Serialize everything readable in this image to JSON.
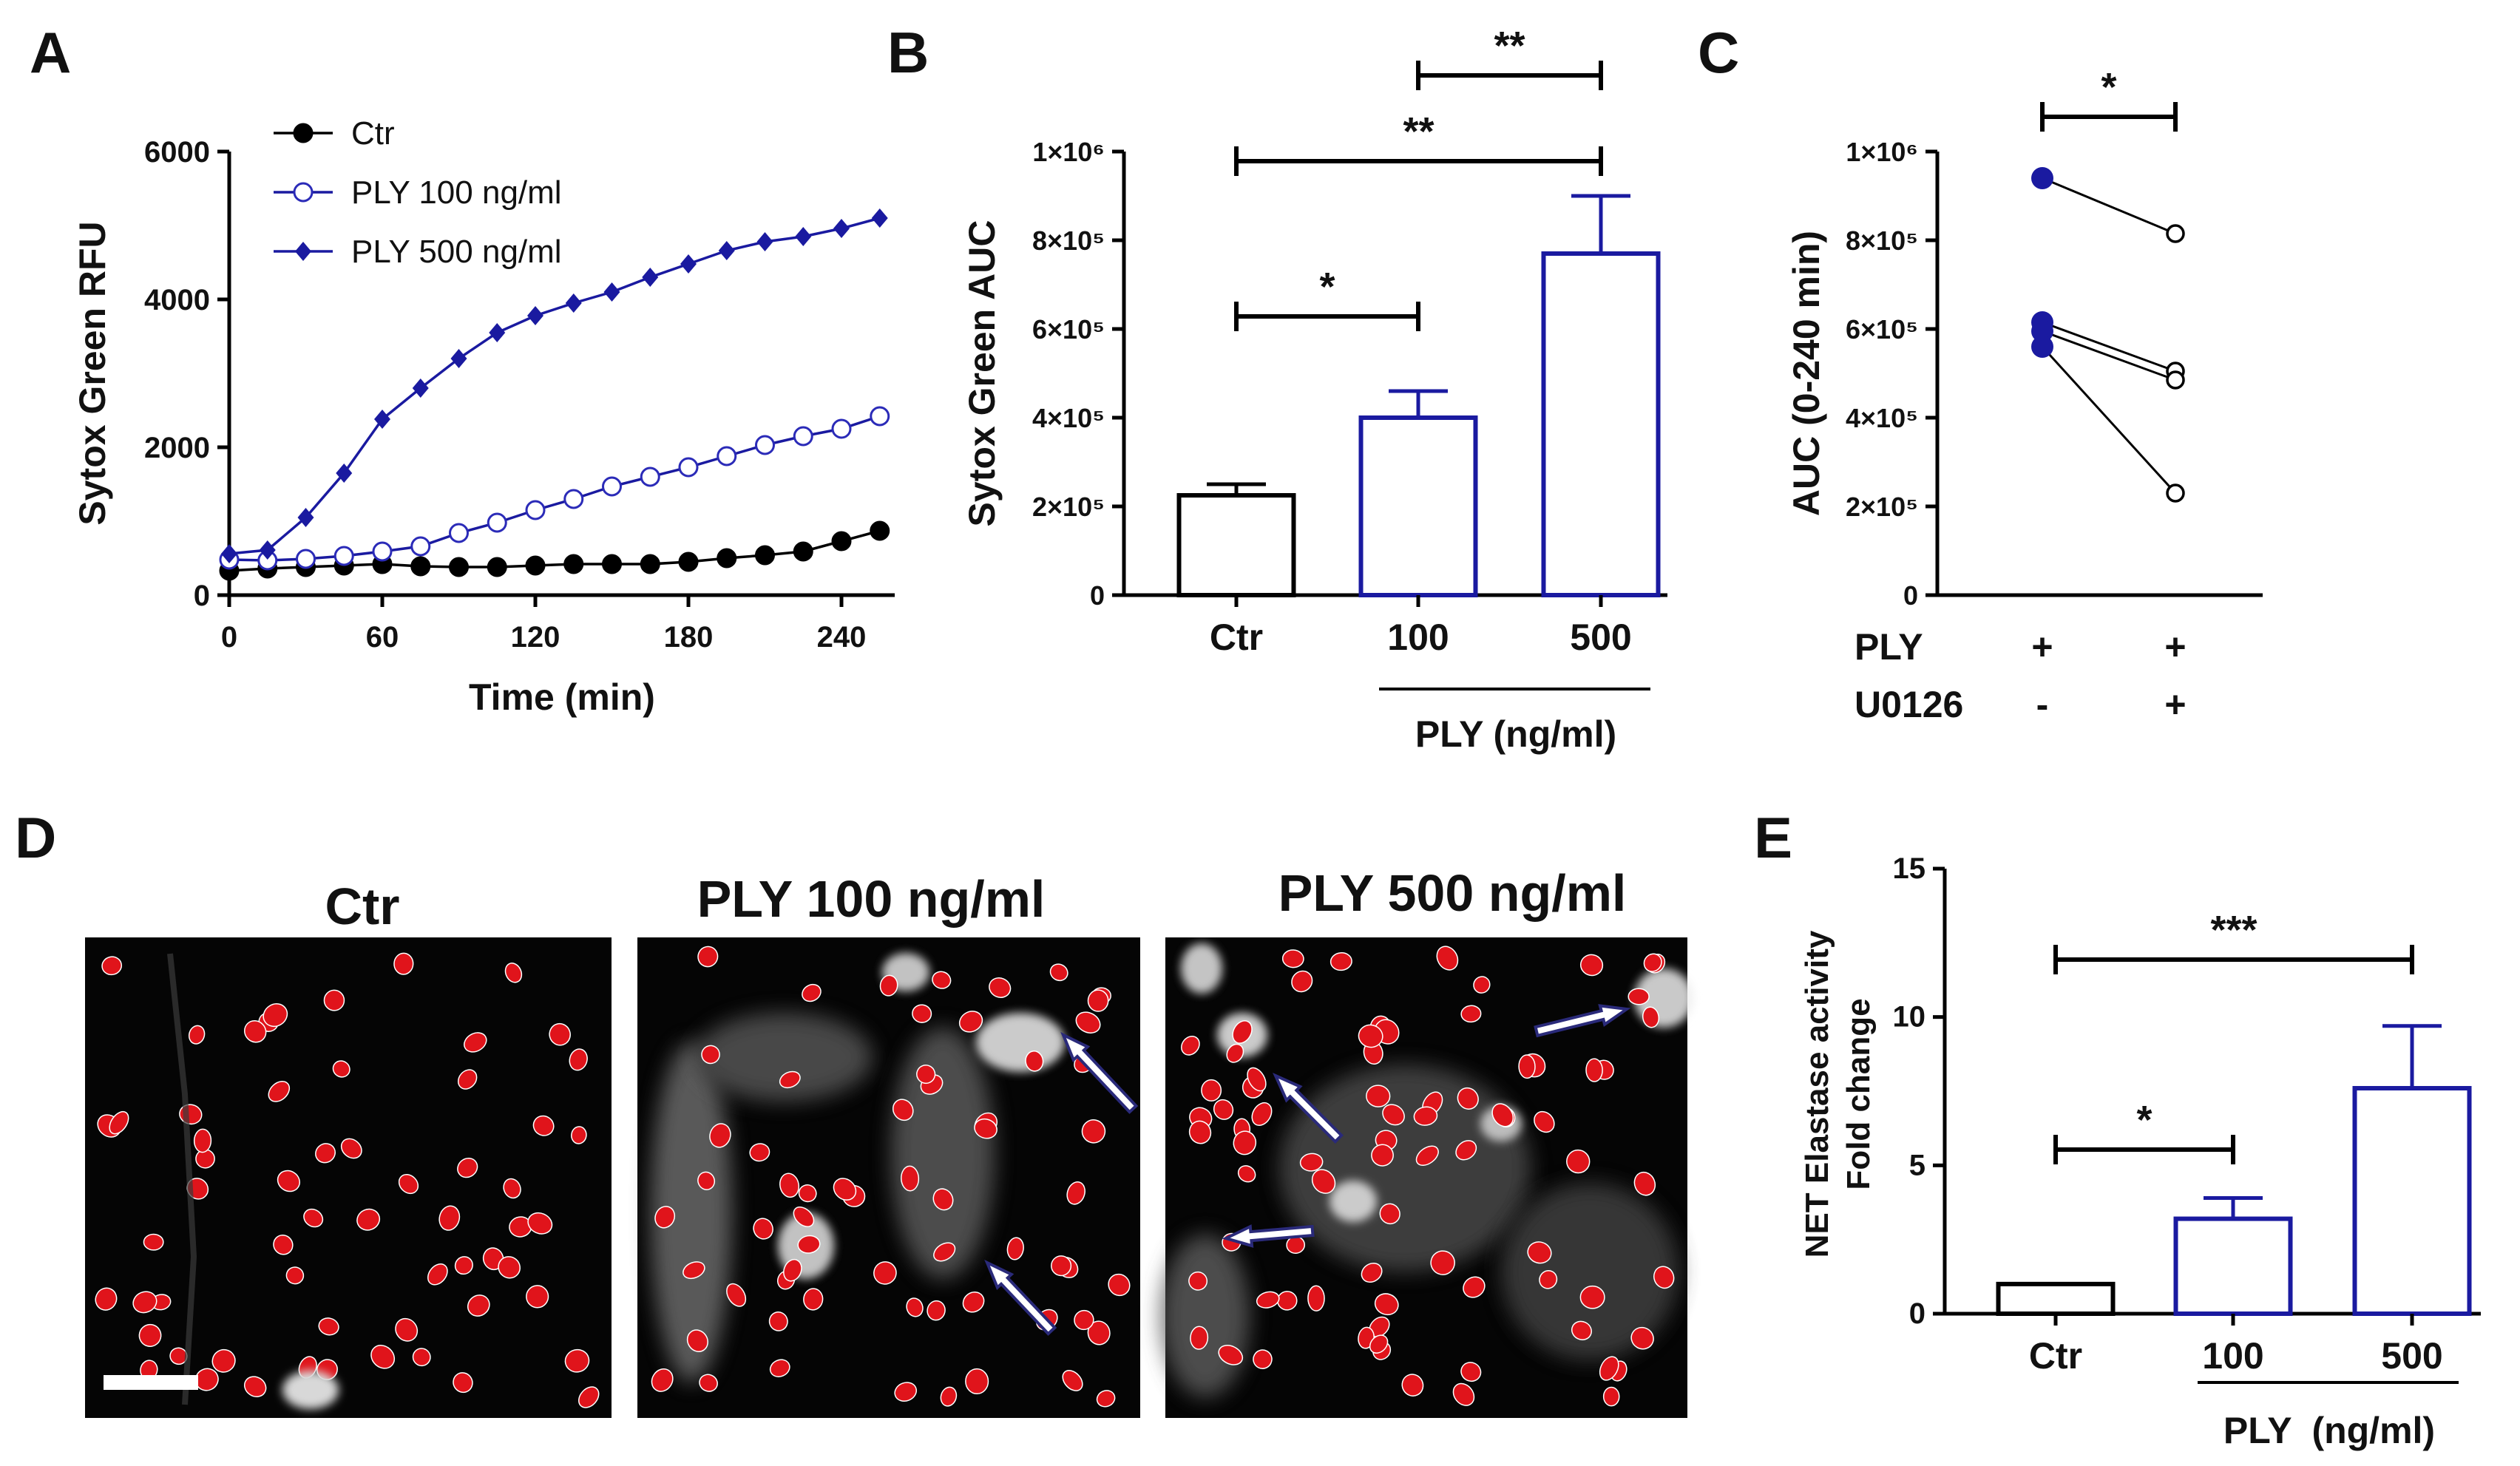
{
  "panels": {
    "A": "A",
    "B": "B",
    "C": "C",
    "D": "D",
    "E": "E"
  },
  "colors": {
    "ctr": "#000000",
    "ply": "#1a1aa0",
    "ply_open": "#2b2bb8",
    "nucleus": "#e0141b",
    "arrow_fill": "#ffffff",
    "arrow_stroke": "#2a2a7a"
  },
  "chart_data": [
    {
      "panel": "A",
      "type": "line",
      "xlabel": "Time (min)",
      "ylabel": "Sytox Green RFU",
      "xlim": [
        0,
        260
      ],
      "ylim": [
        0,
        6000
      ],
      "xticks": [
        "0",
        "60",
        "120",
        "180",
        "240"
      ],
      "yticks": [
        "0",
        "2000",
        "4000",
        "6000"
      ],
      "legend_position": "top-left",
      "x": [
        0,
        15,
        30,
        45,
        60,
        75,
        90,
        105,
        120,
        135,
        150,
        165,
        180,
        195,
        210,
        225,
        240,
        255
      ],
      "series": [
        {
          "name": "Ctr",
          "marker": "filled-circle",
          "values": [
            330,
            360,
            380,
            400,
            420,
            390,
            380,
            380,
            400,
            420,
            420,
            420,
            450,
            500,
            540,
            590,
            730,
            870
          ]
        },
        {
          "name": "PLY 100 ng/ml",
          "marker": "open-circle",
          "values": [
            480,
            470,
            490,
            530,
            590,
            660,
            840,
            980,
            1150,
            1300,
            1470,
            1600,
            1730,
            1880,
            2030,
            2150,
            2250,
            2420
          ]
        },
        {
          "name": "PLY 500 ng/ml",
          "marker": "diamond",
          "values": [
            560,
            610,
            1050,
            1650,
            2380,
            2800,
            3200,
            3550,
            3780,
            3950,
            4100,
            4300,
            4480,
            4660,
            4780,
            4850,
            4960,
            5100
          ]
        }
      ]
    },
    {
      "panel": "B",
      "type": "bar",
      "ylabel": "Sytox Green AUC",
      "ylim": [
        0,
        1000000
      ],
      "yticks": [
        "0",
        "2×10⁵",
        "4×10⁵",
        "6×10⁵",
        "8×10⁵",
        "1×10⁶"
      ],
      "categories": [
        "Ctr",
        "100",
        "500"
      ],
      "values": [
        225000,
        400000,
        770000
      ],
      "errors": [
        25000,
        60000,
        130000
      ],
      "group_label": "PLY (ng/ml)",
      "significance": [
        {
          "from": 0,
          "to": 1,
          "label": "*"
        },
        {
          "from": 0,
          "to": 2,
          "label": "**"
        },
        {
          "from": 1,
          "to": 2,
          "label": "**"
        }
      ]
    },
    {
      "panel": "C",
      "type": "scatter",
      "ylabel": "AUC (0-240 min)",
      "ylim": [
        0,
        1000000
      ],
      "yticks": [
        "0",
        "2×10⁵",
        "4×10⁵",
        "6×10⁵",
        "8×10⁵",
        "1×10⁶"
      ],
      "row_labels": [
        "PLY",
        "U0126"
      ],
      "conditions": [
        [
          "+",
          "-"
        ],
        [
          "+",
          "+"
        ]
      ],
      "pairs": [
        [
          940000,
          815000
        ],
        [
          615000,
          505000
        ],
        [
          595000,
          485000
        ],
        [
          560000,
          230000
        ]
      ],
      "significance": [
        {
          "from": 0,
          "to": 1,
          "label": "*"
        }
      ]
    },
    {
      "panel": "E",
      "type": "bar",
      "ylabel": "NET Elastase activity Fold change",
      "ylabel_lines": [
        "NET Elastase activity",
        "Fold change"
      ],
      "ylim": [
        0,
        15
      ],
      "yticks": [
        "0",
        "5",
        "10",
        "15"
      ],
      "categories": [
        "Ctr",
        "100",
        "500"
      ],
      "values": [
        1.0,
        3.2,
        7.6
      ],
      "errors": [
        0,
        0.7,
        2.1
      ],
      "group_label": "PLY  (ng/ml)",
      "significance": [
        {
          "from": 0,
          "to": 1,
          "label": "*"
        },
        {
          "from": 0,
          "to": 2,
          "label": "***"
        }
      ]
    }
  ],
  "micrographs": {
    "titles": [
      "Ctr",
      "PLY 100 ng/ml",
      "PLY 500 ng/ml"
    ]
  }
}
